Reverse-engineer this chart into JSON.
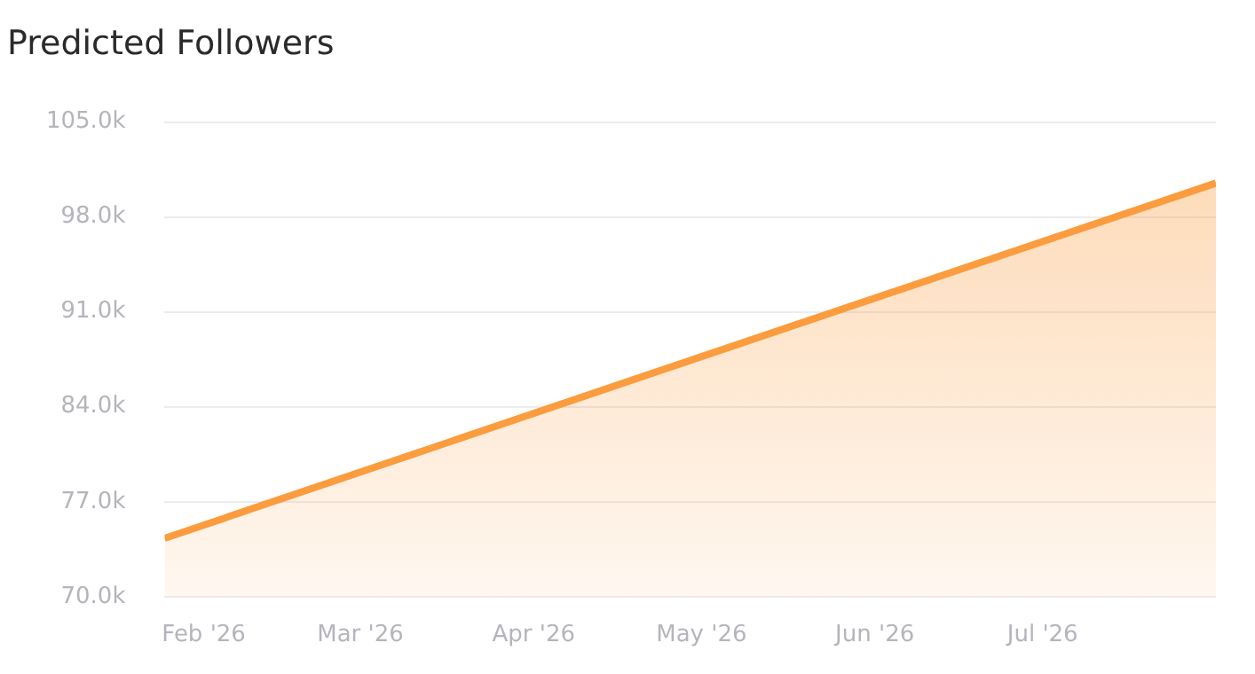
{
  "chart_data": {
    "type": "area",
    "title": "Predicted Followers",
    "x": [
      "2026-01-25",
      "2026-05-01",
      "2026-08-01"
    ],
    "series": [
      {
        "color": "#fb9c3e",
        "values": [
          74300,
          87700,
          100500
        ]
      }
    ],
    "xlim": [
      "2026-01-25",
      "2026-08-01"
    ],
    "xticks": [
      {
        "value": "2026-02-01",
        "label": "Feb '26"
      },
      {
        "value": "2026-03-01",
        "label": "Mar '26"
      },
      {
        "value": "2026-04-01",
        "label": "Apr '26"
      },
      {
        "value": "2026-05-01",
        "label": "May '26"
      },
      {
        "value": "2026-06-01",
        "label": "Jun '26"
      },
      {
        "value": "2026-07-01",
        "label": "Jul '26"
      }
    ],
    "ylim": [
      70000,
      105000
    ],
    "yticks": [
      {
        "value": 70000,
        "label": "70.0k"
      },
      {
        "value": 77000,
        "label": "77.0k"
      },
      {
        "value": 84000,
        "label": "84.0k"
      },
      {
        "value": 91000,
        "label": "91.0k"
      },
      {
        "value": 98000,
        "label": "98.0k"
      },
      {
        "value": 105000,
        "label": "105.0k"
      }
    ],
    "grid": "y",
    "legend": false,
    "marker": "none",
    "line_style": "solid"
  }
}
